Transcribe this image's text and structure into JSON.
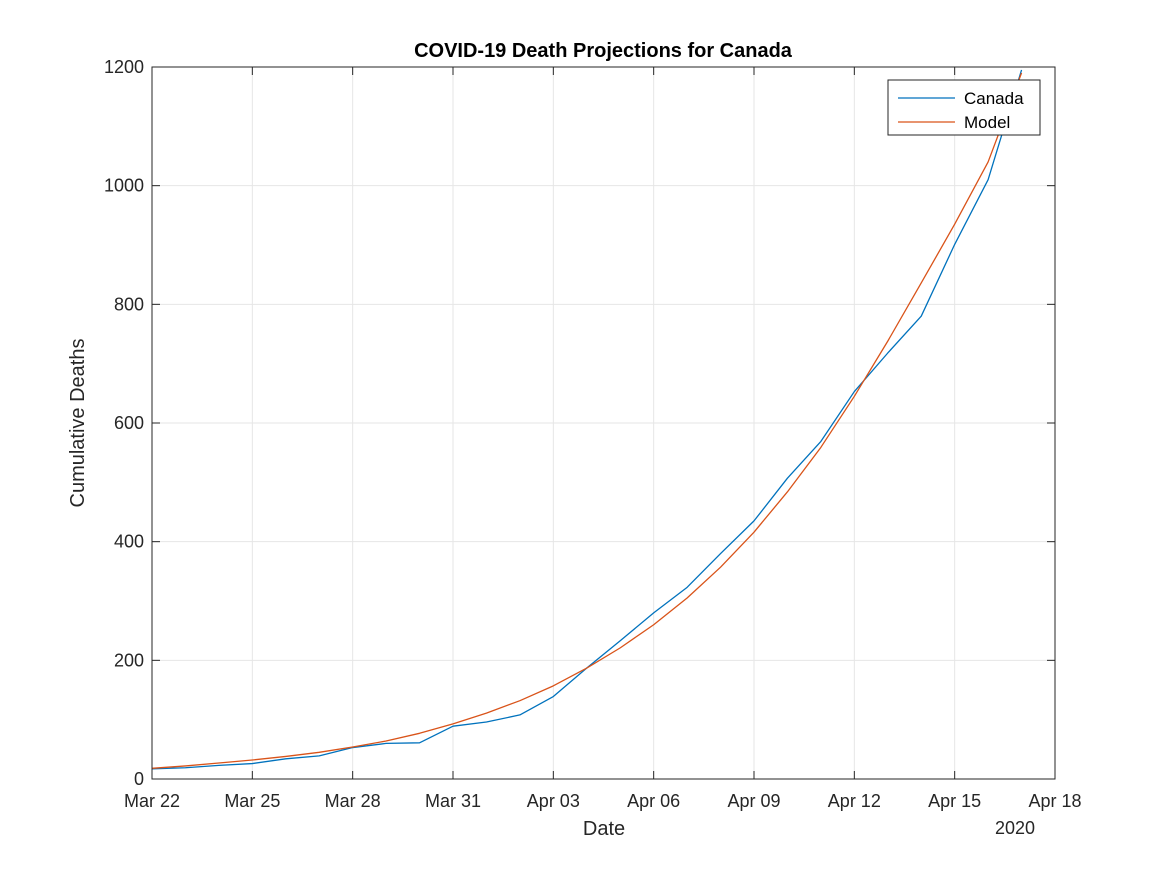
{
  "chart_data": {
    "type": "line",
    "title": "COVID-19 Death Projections for Canada",
    "xlabel": "Date",
    "ylabel": "Cumulative Deaths",
    "year_label": "2020",
    "x_ticks": [
      "Mar 22",
      "Mar 25",
      "Mar 28",
      "Mar 31",
      "Apr 03",
      "Apr 06",
      "Apr 09",
      "Apr 12",
      "Apr 15",
      "Apr 18"
    ],
    "y_ticks": [
      "0",
      "200",
      "400",
      "600",
      "800",
      "1000",
      "1200"
    ],
    "xlim": [
      "2020-03-22",
      "2020-04-18"
    ],
    "ylim": [
      0,
      1200
    ],
    "grid": true,
    "legend_position": "top-right",
    "series": [
      {
        "name": "Canada",
        "color": "#0072BD",
        "x": [
          "2020-03-22",
          "2020-03-23",
          "2020-03-24",
          "2020-03-25",
          "2020-03-26",
          "2020-03-27",
          "2020-03-28",
          "2020-03-29",
          "2020-03-30",
          "2020-03-31",
          "2020-04-01",
          "2020-04-02",
          "2020-04-03",
          "2020-04-04",
          "2020-04-05",
          "2020-04-06",
          "2020-04-07",
          "2020-04-08",
          "2020-04-09",
          "2020-04-10",
          "2020-04-11",
          "2020-04-12",
          "2020-04-13",
          "2020-04-14",
          "2020-04-15",
          "2020-04-16",
          "2020-04-17"
        ],
        "values": [
          17,
          19,
          23,
          26,
          34,
          39,
          53,
          60,
          61,
          89,
          96,
          108,
          139,
          187,
          233,
          280,
          323,
          380,
          435,
          507,
          569,
          653,
          718,
          780,
          901,
          1010,
          1195
        ]
      },
      {
        "name": "Model",
        "color": "#D95319",
        "x": [
          "2020-03-22",
          "2020-03-23",
          "2020-03-24",
          "2020-03-25",
          "2020-03-26",
          "2020-03-27",
          "2020-03-28",
          "2020-03-29",
          "2020-03-30",
          "2020-03-31",
          "2020-04-01",
          "2020-04-02",
          "2020-04-03",
          "2020-04-04",
          "2020-04-05",
          "2020-04-06",
          "2020-04-07",
          "2020-04-08",
          "2020-04-09",
          "2020-04-10",
          "2020-04-11",
          "2020-04-12",
          "2020-04-13",
          "2020-04-14",
          "2020-04-15",
          "2020-04-16",
          "2020-04-17"
        ],
        "values": [
          18,
          22,
          27,
          32,
          38,
          45,
          54,
          64,
          77,
          93,
          111,
          132,
          157,
          187,
          221,
          260,
          305,
          357,
          416,
          484,
          559,
          645,
          738,
          836,
          935,
          1040,
          1190
        ]
      }
    ]
  }
}
